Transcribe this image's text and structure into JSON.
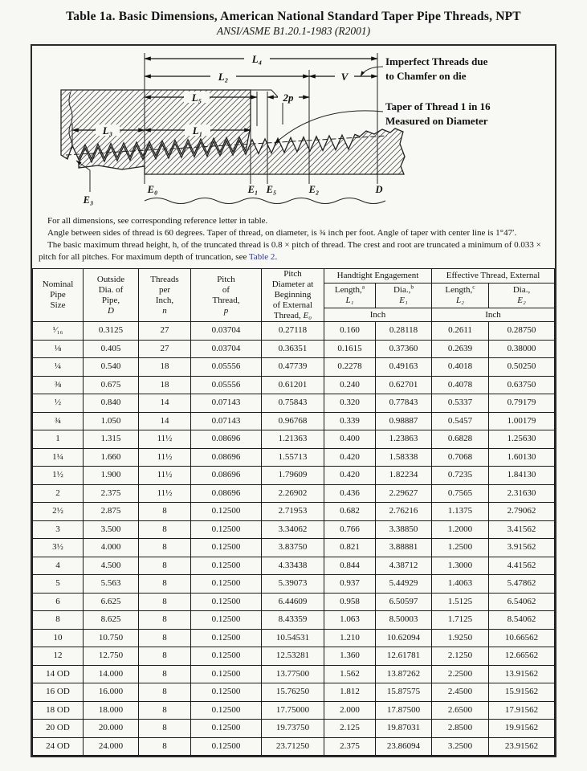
{
  "page": {
    "title": "Table 1a.  Basic Dimensions, American National Standard Taper Pipe Threads, NPT",
    "subtitle": "ANSI/ASME B1.20.1-1983 (R2001)"
  },
  "diagram": {
    "labels": {
      "L4": "L₄",
      "L2": "L₂",
      "V": "V",
      "L5": "L₅",
      "two_p": "2p",
      "L3": "L₃",
      "L1": "L₁",
      "E3": "E₃",
      "E0": "E₀",
      "E1": "E₁",
      "E5": "E₅",
      "E2": "E₂",
      "D": "D"
    },
    "annotations": {
      "imperfect_1": "Imperfect Threads due",
      "imperfect_2": "to Chamfer on die",
      "taper_1": "Taper of Thread 1 in 16",
      "taper_2": "Measured on Diameter"
    }
  },
  "notes": {
    "p1": "For all dimensions, see corresponding reference letter in table.",
    "p2": "Angle between sides of thread is 60 degrees. Taper of thread, on diameter, is ¾ inch per foot. Angle of taper with center line is 1°47′.",
    "p3_before": "The basic maximum thread height, h, of the truncated thread is 0.8 × pitch of thread. The crest and root are truncated a minimum of 0.033 × pitch for all pitches. For maximum depth of truncation, see ",
    "p3_link": "Table 2",
    "p3_after": "."
  },
  "table": {
    "headers": {
      "nominal_1": "Nominal",
      "nominal_2": "Pipe",
      "nominal_3": "Size",
      "outside_1": "Outside",
      "outside_2": "Dia. of",
      "outside_3": "Pipe,",
      "outside_sym": "D",
      "threads_1": "Threads",
      "threads_2": "per",
      "threads_3": "Inch,",
      "threads_sym": "n",
      "pitch_1": "Pitch",
      "pitch_2": "of",
      "pitch_3": "Thread,",
      "pitch_sym": "p",
      "pd_1": "Pitch",
      "pd_2": "Diameter at",
      "pd_3": "Beginning",
      "pd_4": "of External",
      "pd_5": "Thread, ",
      "pd_sym": "E₀",
      "group_handtight": "Handtight Engagement",
      "group_effective": "Effective Thread, External",
      "len_a_label": "Length,",
      "len_a_sup": "a",
      "len_a_sym": "L₁",
      "dia_b_label": "Dia.,",
      "dia_b_sup": "b",
      "dia_b_sym": "E₁",
      "len_c_label": "Length,",
      "len_c_sup": "c",
      "len_c_sym": "L₂",
      "dia_d_label": "Dia.,",
      "dia_d_sup": "",
      "dia_d_sym": "E₂",
      "unit_1": "Inch",
      "unit_2": "Inch"
    },
    "rows": [
      [
        "¹⁄₁₆",
        "0.3125",
        "27",
        "0.03704",
        "0.27118",
        "0.160",
        "0.28118",
        "0.2611",
        "0.28750"
      ],
      [
        "⅛",
        "0.405",
        "27",
        "0.03704",
        "0.36351",
        "0.1615",
        "0.37360",
        "0.2639",
        "0.38000"
      ],
      [
        "¼",
        "0.540",
        "18",
        "0.05556",
        "0.47739",
        "0.2278",
        "0.49163",
        "0.4018",
        "0.50250"
      ],
      [
        "⅜",
        "0.675",
        "18",
        "0.05556",
        "0.61201",
        "0.240",
        "0.62701",
        "0.4078",
        "0.63750"
      ],
      [
        "½",
        "0.840",
        "14",
        "0.07143",
        "0.75843",
        "0.320",
        "0.77843",
        "0.5337",
        "0.79179"
      ],
      [
        "¾",
        "1.050",
        "14",
        "0.07143",
        "0.96768",
        "0.339",
        "0.98887",
        "0.5457",
        "1.00179"
      ],
      [
        "1",
        "1.315",
        "11½",
        "0.08696",
        "1.21363",
        "0.400",
        "1.23863",
        "0.6828",
        "1.25630"
      ],
      [
        "1¼",
        "1.660",
        "11½",
        "0.08696",
        "1.55713",
        "0.420",
        "1.58338",
        "0.7068",
        "1.60130"
      ],
      [
        "1½",
        "1.900",
        "11½",
        "0.08696",
        "1.79609",
        "0.420",
        "1.82234",
        "0.7235",
        "1.84130"
      ],
      [
        "2",
        "2.375",
        "11½",
        "0.08696",
        "2.26902",
        "0.436",
        "2.29627",
        "0.7565",
        "2.31630"
      ],
      [
        "2½",
        "2.875",
        "8",
        "0.12500",
        "2.71953",
        "0.682",
        "2.76216",
        "1.1375",
        "2.79062"
      ],
      [
        "3",
        "3.500",
        "8",
        "0.12500",
        "3.34062",
        "0.766",
        "3.38850",
        "1.2000",
        "3.41562"
      ],
      [
        "3½",
        "4.000",
        "8",
        "0.12500",
        "3.83750",
        "0.821",
        "3.88881",
        "1.2500",
        "3.91562"
      ],
      [
        "4",
        "4.500",
        "8",
        "0.12500",
        "4.33438",
        "0.844",
        "4.38712",
        "1.3000",
        "4.41562"
      ],
      [
        "5",
        "5.563",
        "8",
        "0.12500",
        "5.39073",
        "0.937",
        "5.44929",
        "1.4063",
        "5.47862"
      ],
      [
        "6",
        "6.625",
        "8",
        "0.12500",
        "6.44609",
        "0.958",
        "6.50597",
        "1.5125",
        "6.54062"
      ],
      [
        "8",
        "8.625",
        "8",
        "0.12500",
        "8.43359",
        "1.063",
        "8.50003",
        "1.7125",
        "8.54062"
      ],
      [
        "10",
        "10.750",
        "8",
        "0.12500",
        "10.54531",
        "1.210",
        "10.62094",
        "1.9250",
        "10.66562"
      ],
      [
        "12",
        "12.750",
        "8",
        "0.12500",
        "12.53281",
        "1.360",
        "12.61781",
        "2.1250",
        "12.66562"
      ],
      [
        "14 OD",
        "14.000",
        "8",
        "0.12500",
        "13.77500",
        "1.562",
        "13.87262",
        "2.2500",
        "13.91562"
      ],
      [
        "16 OD",
        "16.000",
        "8",
        "0.12500",
        "15.76250",
        "1.812",
        "15.87575",
        "2.4500",
        "15.91562"
      ],
      [
        "18 OD",
        "18.000",
        "8",
        "0.12500",
        "17.75000",
        "2.000",
        "17.87500",
        "2.6500",
        "17.91562"
      ],
      [
        "20 OD",
        "20.000",
        "8",
        "0.12500",
        "19.73750",
        "2.125",
        "19.87031",
        "2.8500",
        "19.91562"
      ],
      [
        "24 OD",
        "24.000",
        "8",
        "0.12500",
        "23.71250",
        "2.375",
        "23.86094",
        "3.2500",
        "23.91562"
      ]
    ]
  }
}
